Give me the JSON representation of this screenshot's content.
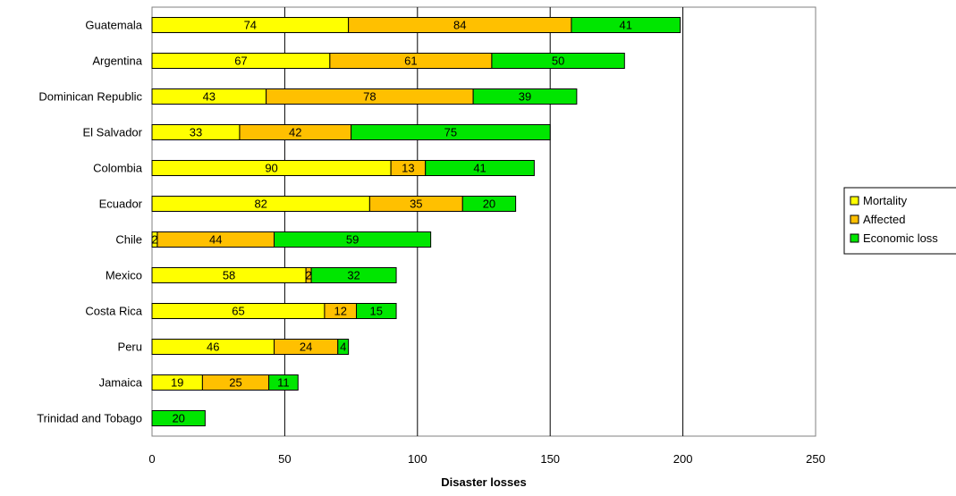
{
  "chart_data": {
    "type": "bar",
    "orientation": "horizontal",
    "stacked": true,
    "xlabel": "Disaster losses",
    "xlim": [
      0,
      250
    ],
    "xticks": [
      "0",
      "50",
      "100",
      "150",
      "200",
      "250"
    ],
    "grid": "vertical",
    "legend_position": "right",
    "categories": [
      "Guatemala",
      "Argentina",
      "Dominican Republic",
      "El Salvador",
      "Colombia",
      "Ecuador",
      "Chile",
      "Mexico",
      "Costa Rica",
      "Peru",
      "Jamaica",
      "Trinidad and Tobago"
    ],
    "series": [
      {
        "name": "Mortality",
        "color": "#FFFF00",
        "values": [
          74,
          67,
          43,
          33,
          90,
          82,
          2,
          58,
          65,
          46,
          19,
          0
        ]
      },
      {
        "name": "Affected",
        "color": "#FFC000",
        "values": [
          84,
          61,
          78,
          42,
          13,
          35,
          44,
          2,
          12,
          24,
          25,
          0
        ]
      },
      {
        "name": "Economic loss",
        "color": "#00E600",
        "values": [
          41,
          50,
          39,
          75,
          41,
          20,
          59,
          32,
          15,
          4,
          11,
          20
        ]
      }
    ]
  }
}
